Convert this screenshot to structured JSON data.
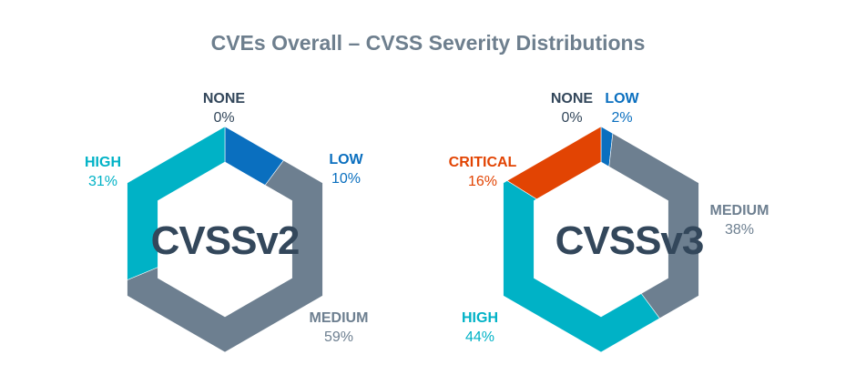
{
  "title": "CVEs Overall – CVSS Severity Distributions",
  "colors": {
    "NONE": "#33475b",
    "LOW": "#0a6fbf",
    "MEDIUM": "#6d7f90",
    "HIGH": "#00b2c6",
    "CRITICAL": "#e24403"
  },
  "chart_data": [
    {
      "type": "pie",
      "center_label": "CVSSv2",
      "categories": [
        "NONE",
        "LOW",
        "MEDIUM",
        "HIGH"
      ],
      "values": [
        0,
        10,
        59,
        31
      ],
      "value_labels": [
        "0%",
        "10%",
        "59%",
        "31%"
      ]
    },
    {
      "type": "pie",
      "center_label": "CVSSv3",
      "categories": [
        "NONE",
        "LOW",
        "MEDIUM",
        "HIGH",
        "CRITICAL"
      ],
      "values": [
        0,
        2,
        38,
        44,
        16
      ],
      "value_labels": [
        "0%",
        "2%",
        "38%",
        "44%",
        "16%"
      ]
    }
  ]
}
